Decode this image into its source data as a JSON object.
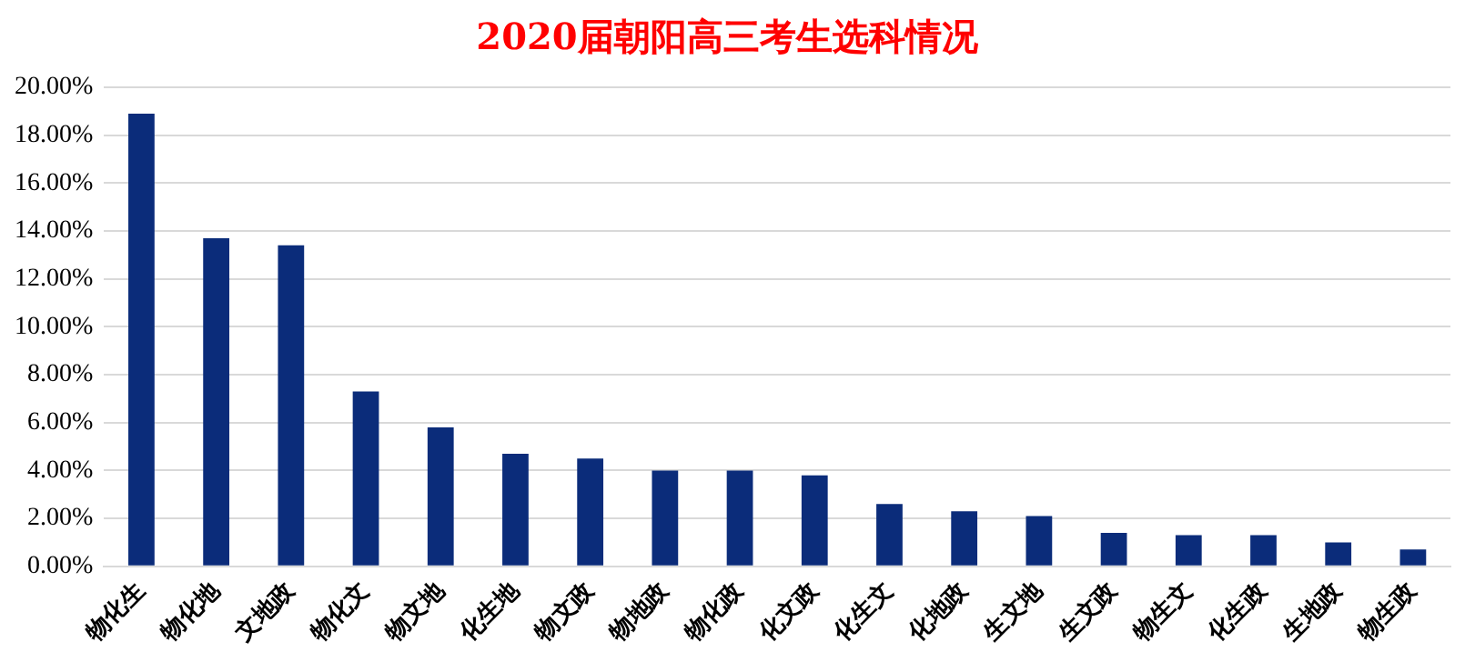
{
  "chart_data": {
    "type": "bar",
    "title": "2020届朝阳高三考生选科情况",
    "categories": [
      "物化生",
      "物化地",
      "文地政",
      "物化文",
      "物文地",
      "化生地",
      "物文政",
      "物地政",
      "物化政",
      "化文政",
      "化生文",
      "化地政",
      "生文地",
      "生文政",
      "物生文",
      "化生政",
      "生地政",
      "物生政"
    ],
    "values": [
      18.9,
      13.7,
      13.4,
      7.3,
      5.8,
      4.7,
      4.5,
      4.0,
      4.0,
      3.8,
      2.6,
      2.3,
      2.1,
      1.4,
      1.3,
      1.3,
      1.0,
      0.7
    ],
    "color": "#0b2c7a",
    "ylim": [
      0,
      20
    ],
    "yticks": [
      {
        "value": 0,
        "label": "0.00%"
      },
      {
        "value": 2,
        "label": "2.00%"
      },
      {
        "value": 4,
        "label": "4.00%"
      },
      {
        "value": 6,
        "label": "6.00%"
      },
      {
        "value": 8,
        "label": "8.00%"
      },
      {
        "value": 10,
        "label": "10.00%"
      },
      {
        "value": 12,
        "label": "12.00%"
      },
      {
        "value": 14,
        "label": "14.00%"
      },
      {
        "value": 16,
        "label": "16.00%"
      },
      {
        "value": 18,
        "label": "18.00%"
      },
      {
        "value": 20,
        "label": "20.00%"
      }
    ],
    "grid": "y",
    "legend": false
  }
}
